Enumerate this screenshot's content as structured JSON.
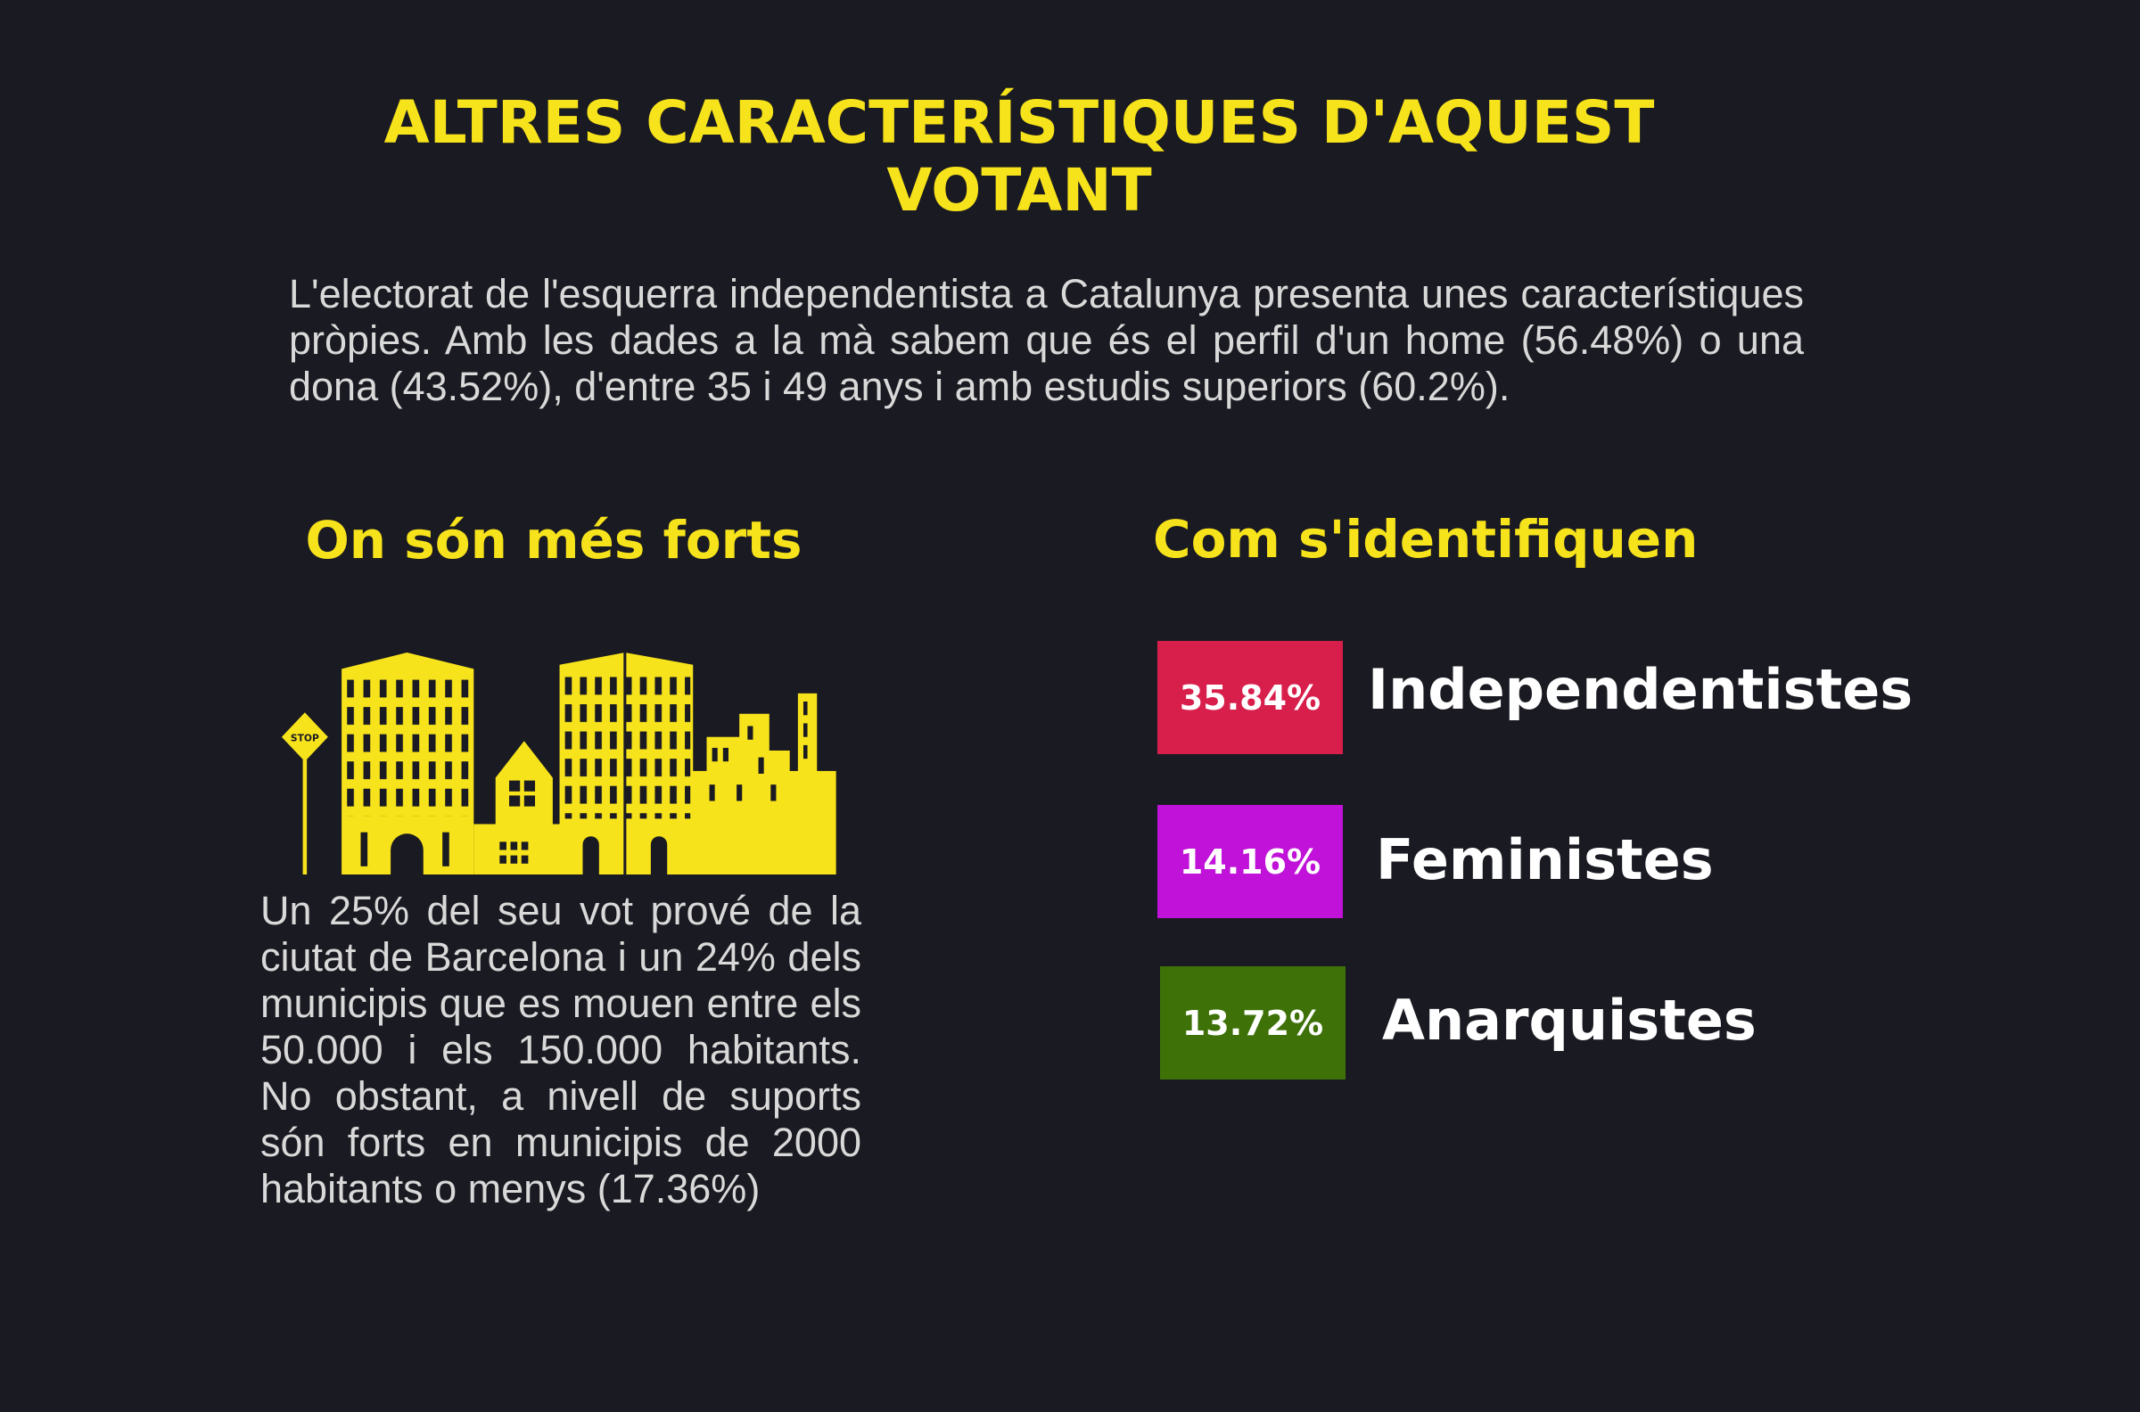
{
  "header": {
    "title": "ALTRES CARACTERÍSTIQUES D'AQUEST VOTANT",
    "intro": "L'electorat de l'esquerra independentista a Catalunya presenta unes característiques pròpies. Amb les dades a la mà sabem que és el perfil d'un home (56.48%) o una dona (43.52%), d'entre 35 i 49 anys i amb estudis superiors (60.2%)."
  },
  "left": {
    "heading": "On són més forts",
    "icon_sign": "STOP",
    "text": "Un 25% del seu vot prové de la ciutat de Barcelona i un 24% dels municipis que es mouen entre els 50.000 i els 150.000 habitants. No obstant, a nivell de suports són forts en municipis de 2000 habitants o menys (17.36%)"
  },
  "right": {
    "heading": "Com s'identifiquen",
    "items": [
      {
        "value": "35.84%",
        "label": "Independentistes",
        "color": "#d81f4c"
      },
      {
        "value": "14.16%",
        "label": "Feministes",
        "color": "#c012d8"
      },
      {
        "value": "13.72%",
        "label": "Anarquistes",
        "color": "#3e7208"
      }
    ]
  }
}
